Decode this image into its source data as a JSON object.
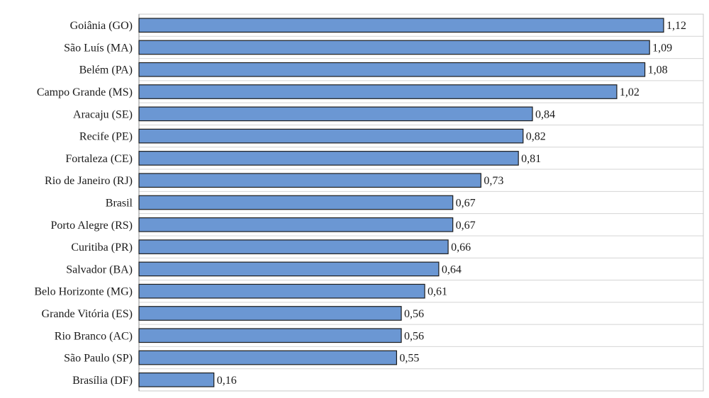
{
  "chart_data": {
    "type": "bar",
    "orientation": "horizontal",
    "title": "",
    "xlabel": "",
    "ylabel": "",
    "grid": true,
    "legend": "none",
    "xlim": [
      0,
      1.2
    ],
    "bar_color": "#6b97d3",
    "categories": [
      "Goiânia (GO)",
      "São Luís (MA)",
      "Belém (PA)",
      "Campo Grande (MS)",
      "Aracaju (SE)",
      "Recife (PE)",
      "Fortaleza (CE)",
      "Rio de Janeiro (RJ)",
      "Brasil",
      "Porto Alegre (RS)",
      "Curitiba (PR)",
      "Salvador (BA)",
      "Belo Horizonte (MG)",
      "Grande Vitória (ES)",
      "Rio Branco (AC)",
      "São Paulo (SP)",
      "Brasília (DF)"
    ],
    "values": [
      1.12,
      1.09,
      1.08,
      1.02,
      0.84,
      0.82,
      0.81,
      0.73,
      0.67,
      0.67,
      0.66,
      0.64,
      0.61,
      0.56,
      0.56,
      0.55,
      0.16
    ],
    "value_labels": [
      "1,12",
      "1,09",
      "1,08",
      "1,02",
      "0,84",
      "0,82",
      "0,81",
      "0,73",
      "0,67",
      "0,67",
      "0,66",
      "0,64",
      "0,61",
      "0,56",
      "0,56",
      "0,55",
      "0,16"
    ]
  }
}
